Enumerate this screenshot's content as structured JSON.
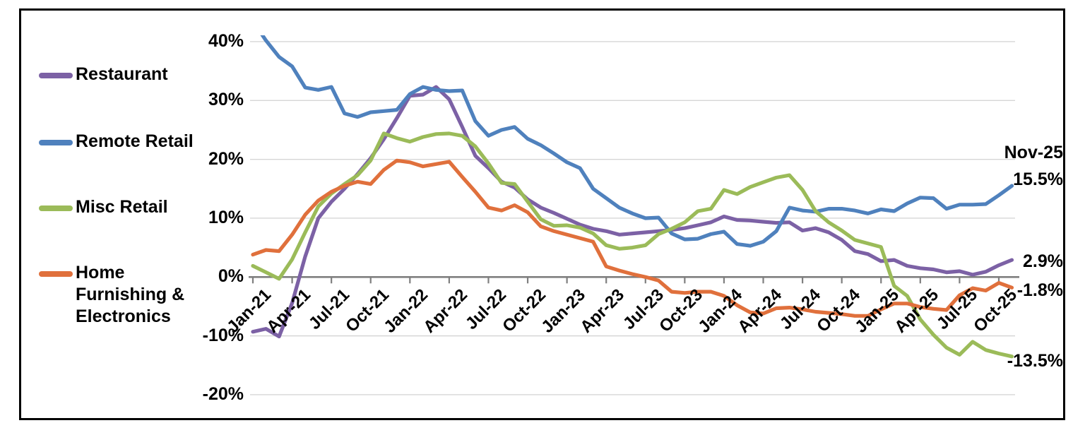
{
  "legend": {
    "items": [
      {
        "label": "Restaurant",
        "color": "#7C61A5"
      },
      {
        "label": "Remote Retail",
        "color": "#4F81BD"
      },
      {
        "label": "Misc Retail",
        "color": "#9BBB59"
      },
      {
        "label": "Home Furnishing & Electronics",
        "color": "#E0703C"
      }
    ]
  },
  "y_axis": {
    "tick_labels": [
      "40%",
      "30%",
      "20%",
      "10%",
      "0%",
      "-10%",
      "-20%"
    ],
    "tick_values": [
      40,
      30,
      20,
      10,
      0,
      -10,
      -20
    ]
  },
  "x_axis": {
    "tick_labels": [
      "Jan-21",
      "Apr-21",
      "Jul-21",
      "Oct-21",
      "Jan-22",
      "Apr-22",
      "Jul-22",
      "Oct-22",
      "Jan-23",
      "Apr-23",
      "Jul-23",
      "Oct-23",
      "Jan-24",
      "Apr-24",
      "Jul-24",
      "Oct-24",
      "Jan-25",
      "Apr-25",
      "Jul-25",
      "Oct-25"
    ]
  },
  "callout": {
    "title": "Nov-25",
    "entries": [
      {
        "label": "15.5%",
        "series": "Remote Retail"
      },
      {
        "label": "2.9%",
        "series": "Restaurant"
      },
      {
        "label": "-1.8%",
        "series": "Home Furnishing & Electronics"
      },
      {
        "label": "-13.5%",
        "series": "Misc Retail"
      }
    ]
  },
  "chart_data": {
    "type": "line",
    "title": "",
    "xlabel": "",
    "ylabel": "",
    "ylim": [
      -20,
      40
    ],
    "grid": "horizontal",
    "legend_position": "left",
    "x": [
      "Jan-21",
      "Feb-21",
      "Mar-21",
      "Apr-21",
      "May-21",
      "Jun-21",
      "Jul-21",
      "Aug-21",
      "Sep-21",
      "Oct-21",
      "Nov-21",
      "Dec-21",
      "Jan-22",
      "Feb-22",
      "Mar-22",
      "Apr-22",
      "May-22",
      "Jun-22",
      "Jul-22",
      "Aug-22",
      "Sep-22",
      "Oct-22",
      "Nov-22",
      "Dec-22",
      "Jan-23",
      "Feb-23",
      "Mar-23",
      "Apr-23",
      "May-23",
      "Jun-23",
      "Jul-23",
      "Aug-23",
      "Sep-23",
      "Oct-23",
      "Nov-23",
      "Dec-23",
      "Jan-24",
      "Feb-24",
      "Mar-24",
      "Apr-24",
      "May-24",
      "Jun-24",
      "Jul-24",
      "Aug-24",
      "Sep-24",
      "Oct-24",
      "Nov-24",
      "Dec-24",
      "Jan-25",
      "Feb-25",
      "Mar-25",
      "Apr-25",
      "May-25",
      "Jun-25",
      "Jul-25",
      "Aug-25",
      "Sep-25",
      "Oct-25",
      "Nov-25"
    ],
    "series": [
      {
        "name": "Restaurant",
        "color": "#7C61A5",
        "values": [
          -9.3,
          -8.8,
          -10.1,
          -4.4,
          3.5,
          10.0,
          12.8,
          15.0,
          17.5,
          20.2,
          23.4,
          27.0,
          30.8,
          31.0,
          32.3,
          30.2,
          25.5,
          20.6,
          18.5,
          16.2,
          15.2,
          13.2,
          11.8,
          10.9,
          9.9,
          8.9,
          8.2,
          7.8,
          7.2,
          7.4,
          7.6,
          7.8,
          8.0,
          8.3,
          8.8,
          9.3,
          10.3,
          9.7,
          9.6,
          9.4,
          9.2,
          9.3,
          7.9,
          8.3,
          7.6,
          6.3,
          4.4,
          3.9,
          2.7,
          2.9,
          1.9,
          1.5,
          1.3,
          0.8,
          1.0,
          0.4,
          0.9,
          2.0,
          2.9
        ]
      },
      {
        "name": "Remote Retail",
        "color": "#4F81BD",
        "values": [
          43.5,
          40.2,
          37.4,
          35.8,
          32.2,
          31.8,
          32.3,
          27.8,
          27.2,
          28.0,
          28.2,
          28.4,
          31.1,
          32.3,
          31.8,
          31.6,
          31.7,
          26.5,
          24.0,
          25.0,
          25.5,
          23.5,
          22.4,
          21.0,
          19.5,
          18.5,
          15.0,
          13.4,
          11.8,
          10.8,
          10.0,
          10.1,
          7.4,
          6.4,
          6.5,
          7.3,
          7.7,
          5.6,
          5.3,
          6.0,
          7.8,
          11.8,
          11.3,
          11.1,
          11.6,
          11.6,
          11.3,
          10.8,
          11.5,
          11.2,
          12.5,
          13.5,
          13.4,
          11.6,
          12.3,
          12.3,
          12.4,
          13.9,
          15.5
        ]
      },
      {
        "name": "Misc Retail",
        "color": "#9BBB59",
        "values": [
          1.9,
          0.8,
          -0.3,
          3.0,
          7.6,
          12.0,
          14.2,
          15.8,
          17.3,
          19.8,
          24.4,
          23.6,
          23.0,
          23.8,
          24.3,
          24.4,
          24.0,
          22.2,
          19.3,
          16.0,
          15.8,
          12.8,
          9.8,
          8.7,
          8.8,
          8.4,
          7.4,
          5.4,
          4.8,
          5.0,
          5.4,
          7.3,
          8.2,
          9.3,
          11.2,
          11.6,
          14.8,
          14.1,
          15.3,
          16.1,
          16.9,
          17.3,
          14.8,
          11.2,
          9.3,
          7.9,
          6.3,
          5.7,
          5.1,
          -1.5,
          -3.2,
          -7.2,
          -9.8,
          -12.0,
          -13.2,
          -11.0,
          -12.4,
          -13.0,
          -13.5
        ]
      },
      {
        "name": "Home Furnishing & Electronics",
        "color": "#E0703C",
        "values": [
          3.8,
          4.6,
          4.4,
          7.2,
          10.6,
          13.0,
          14.5,
          15.5,
          16.2,
          15.8,
          18.2,
          19.8,
          19.5,
          18.8,
          19.2,
          19.6,
          17.0,
          14.5,
          11.8,
          11.3,
          12.2,
          11.0,
          8.6,
          7.8,
          7.2,
          6.6,
          6.0,
          1.8,
          1.1,
          0.5,
          0.0,
          -0.6,
          -2.5,
          -2.7,
          -2.5,
          -2.5,
          -3.2,
          -4.8,
          -6.0,
          -6.2,
          -5.3,
          -5.2,
          -5.5,
          -5.9,
          -6.1,
          -6.3,
          -6.6,
          -6.6,
          -5.5,
          -4.5,
          -4.5,
          -5.1,
          -5.4,
          -5.6,
          -3.1,
          -1.9,
          -2.3,
          -1.0,
          -1.8
        ]
      }
    ],
    "end_labels": {
      "title": "Nov-25",
      "Remote Retail": "15.5%",
      "Restaurant": "2.9%",
      "Home Furnishing & Electronics": "-1.8%",
      "Misc Retail": "-13.5%"
    }
  }
}
